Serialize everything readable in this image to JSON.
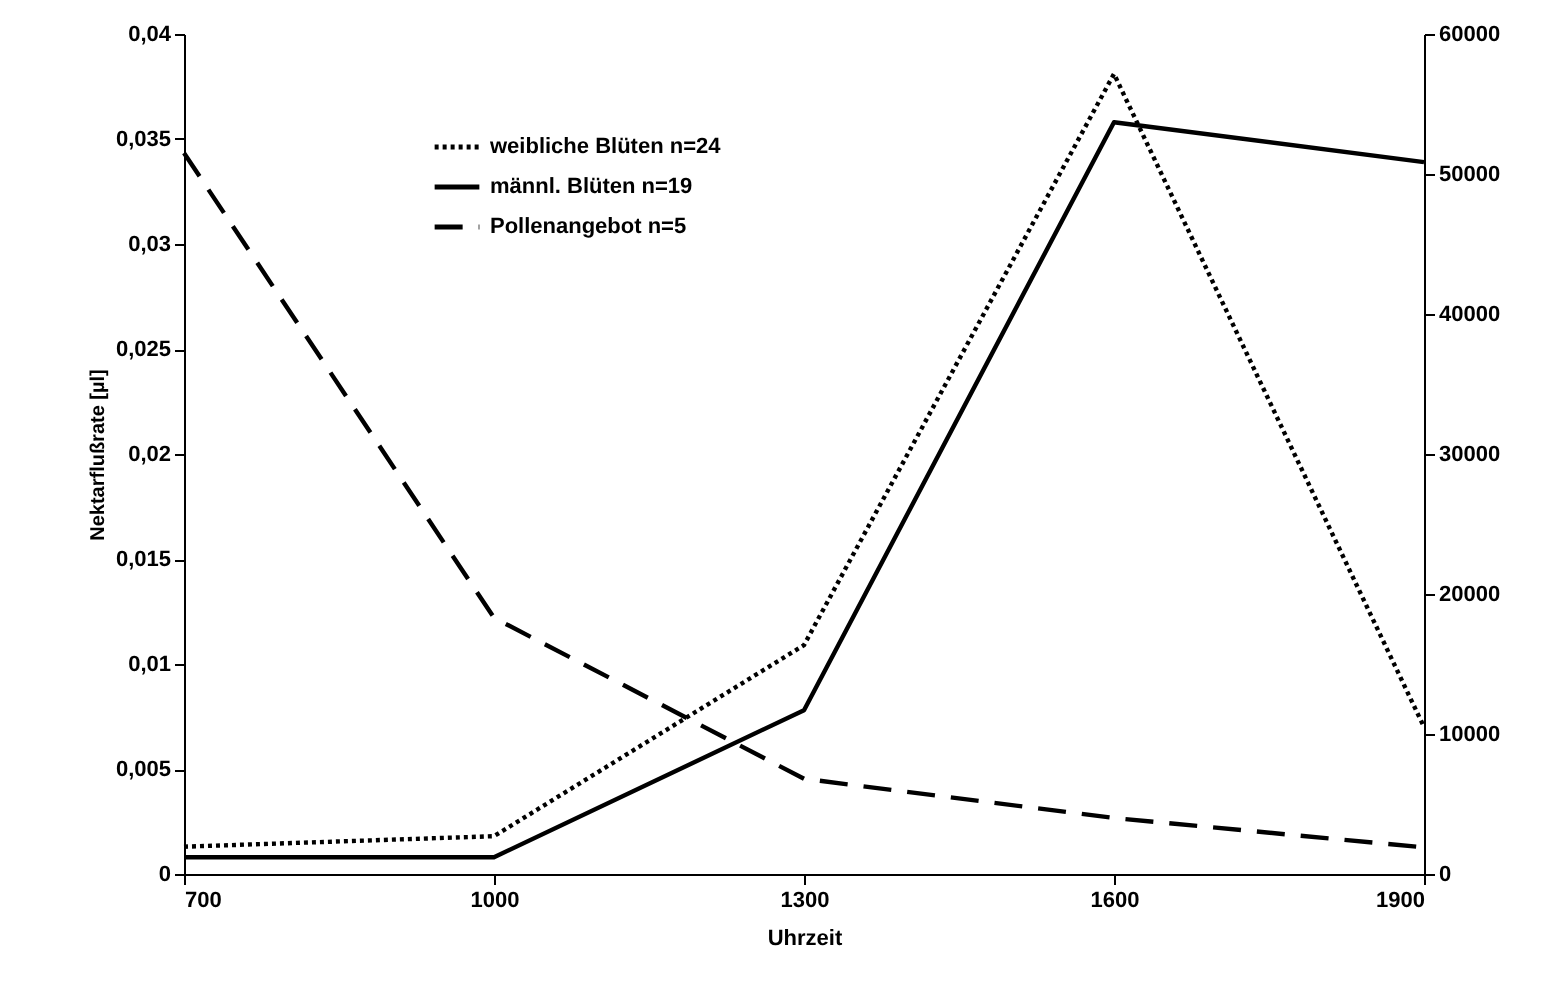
{
  "chart_data": {
    "type": "line",
    "xlabel": "Uhrzeit",
    "ylabel": "Nektarflußrate [µl]",
    "x": [
      700,
      1000,
      1300,
      1600,
      1900
    ],
    "xlim": [
      700,
      1900
    ],
    "xticks": [
      700,
      1000,
      1300,
      1600,
      1900
    ],
    "ylim": [
      0,
      0.04
    ],
    "yticks": [
      {
        "value": 0,
        "label": "0"
      },
      {
        "value": 0.005,
        "label": "0,005"
      },
      {
        "value": 0.01,
        "label": "0,01"
      },
      {
        "value": 0.015,
        "label": "0,015"
      },
      {
        "value": 0.02,
        "label": "0,02"
      },
      {
        "value": 0.025,
        "label": "0,025"
      },
      {
        "value": 0.03,
        "label": "0,03"
      },
      {
        "value": 0.035,
        "label": "0,035"
      },
      {
        "value": 0.04,
        "label": "0,04"
      }
    ],
    "y2lim": [
      0,
      60000
    ],
    "y2ticks": [
      0,
      10000,
      20000,
      30000,
      40000,
      50000,
      60000
    ],
    "series": [
      {
        "name": "weibliche Blüten n=24",
        "color": "#000000",
        "line_style": "dotted",
        "values": [
          0.0013,
          0.0018,
          0.0109,
          0.0381,
          0.007
        ]
      },
      {
        "name": "männl. Blüten n=19",
        "color": "#000000",
        "line_style": "solid",
        "values": [
          0.0008,
          0.0008,
          0.0078,
          0.0358,
          0.0339
        ]
      },
      {
        "name": "Pollenangebot n=5",
        "color": "#000000",
        "line_style": "dashed",
        "axis": "y2",
        "values": [
          51500,
          18300,
          6800,
          4000,
          1900
        ]
      }
    ],
    "legend": "top left",
    "grid": false,
    "marker": "none"
  }
}
